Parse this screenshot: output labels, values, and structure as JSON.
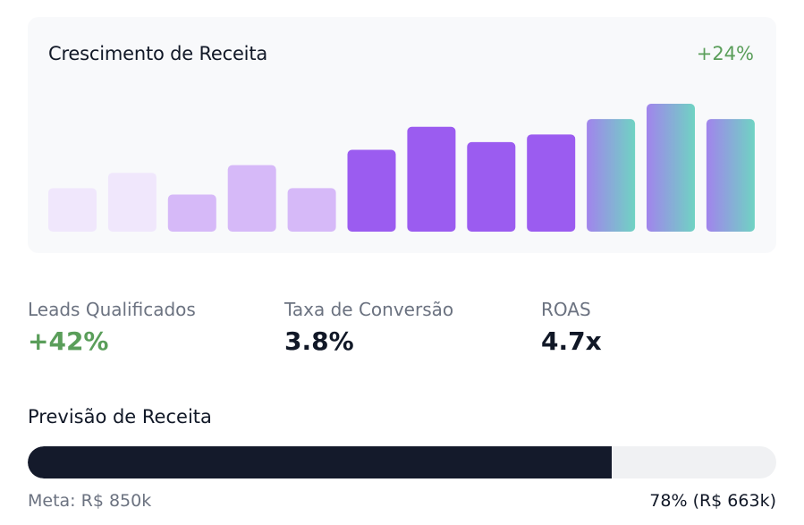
{
  "revenue_growth": {
    "title": "Crescimento de Receita",
    "change": "+24%"
  },
  "metrics": [
    {
      "label": "Leads Qualificados",
      "value": "+42%",
      "positive": true
    },
    {
      "label": "Taxa de Conversão",
      "value": "3.8%",
      "positive": false
    },
    {
      "label": "ROAS",
      "value": "4.7x",
      "positive": false
    }
  ],
  "forecast": {
    "title": "Previsão de Receita",
    "goal": "Meta: R$ 850k",
    "progress_text": "78% (R$ 663k)",
    "progress_fraction": 0.78
  },
  "colors": {
    "positive": "#5a9e5a",
    "bar_pale": "#f0e7fc",
    "bar_light": "#d6b9f8",
    "bar_purple": "#9b5cf0",
    "bar_gradient_start": "#a184ec",
    "bar_gradient_end": "#6fd3c3",
    "progress_fill": "#141a2b",
    "progress_track": "#f0f1f3"
  },
  "chart_data": {
    "type": "bar",
    "title": "Crescimento de Receita",
    "ylim": [
      0,
      100
    ],
    "values": [
      34,
      46,
      29,
      52,
      34,
      64,
      82,
      70,
      76,
      88,
      100,
      88
    ],
    "bar_styles": [
      "pale",
      "pale",
      "light",
      "light",
      "light",
      "purple",
      "purple",
      "purple",
      "purple",
      "gradient",
      "gradient",
      "gradient"
    ]
  }
}
